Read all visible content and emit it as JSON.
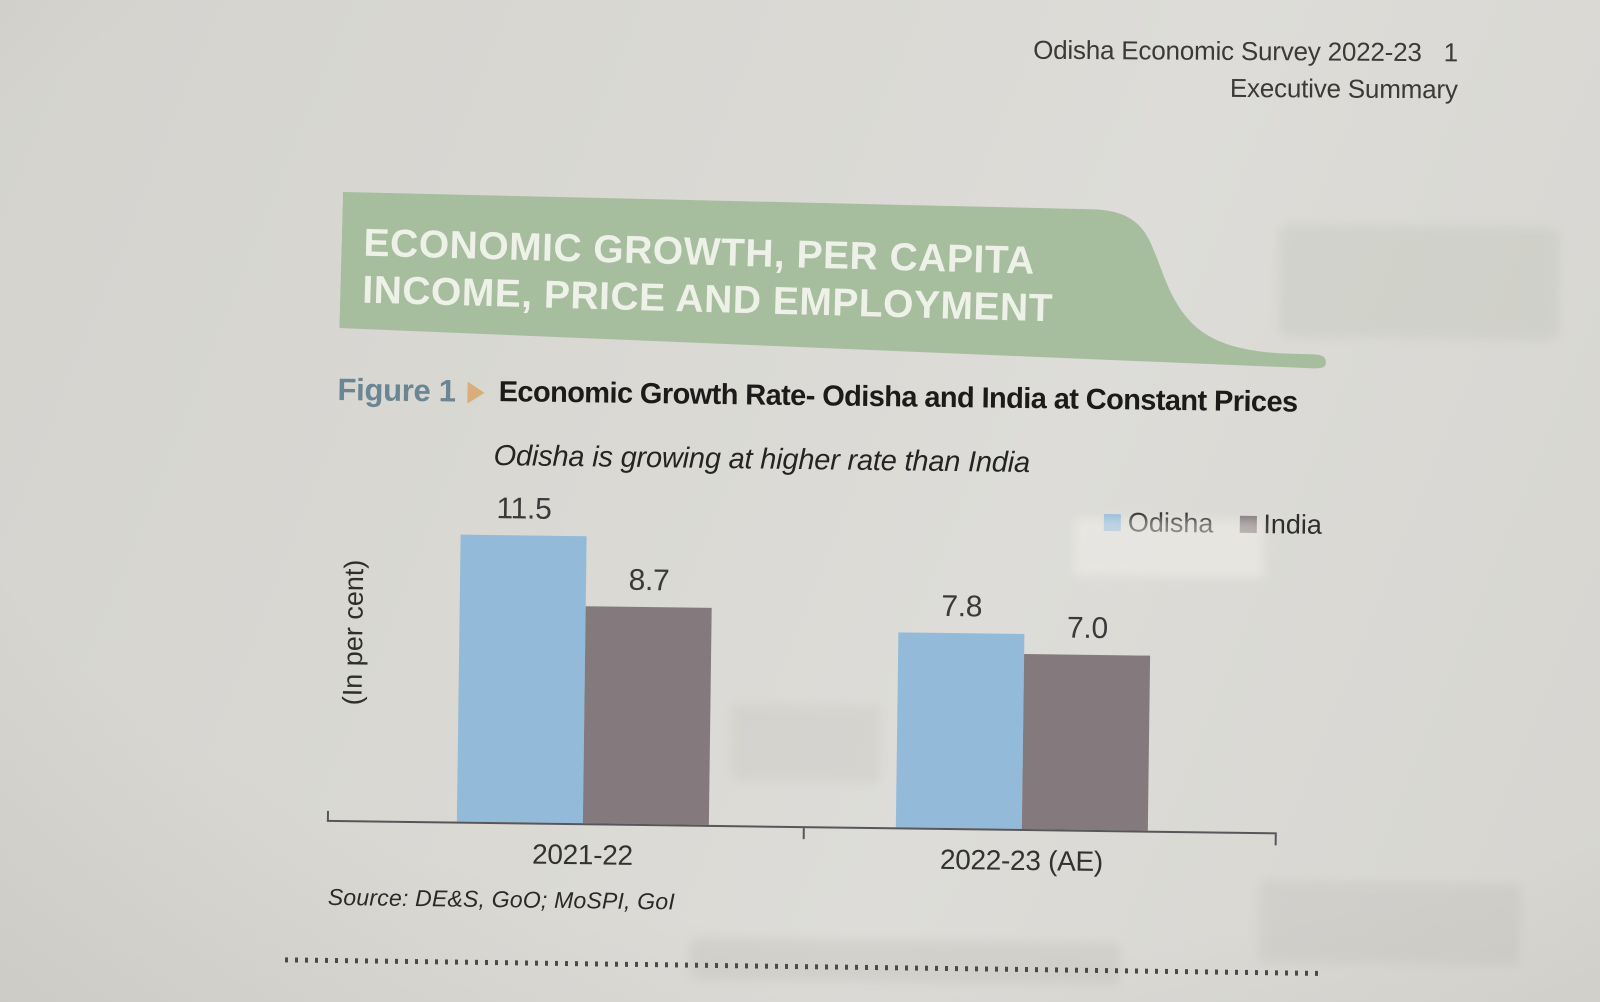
{
  "header": {
    "survey_title": "Odisha Economic Survey 2022-23",
    "page_number": "1",
    "section": "Executive Summary"
  },
  "banner": {
    "line1": "ECONOMIC GROWTH, PER CAPITA",
    "line2": "INCOME, PRICE AND EMPLOYMENT",
    "fill_color": "#a6bd9e",
    "text_color": "#eef1e8"
  },
  "figure": {
    "label": "Figure 1",
    "pointer_icon": "right-triangle-icon",
    "title": "Economic Growth Rate- Odisha and India at Constant Prices",
    "subtitle": "Odisha is growing at higher rate than India",
    "source": "Source: DE&S, GoO; MoSPI, GoI"
  },
  "chart_data": {
    "type": "bar",
    "title": "Economic Growth Rate- Odisha and India at Constant Prices",
    "subtitle": "Odisha is growing at higher rate than India",
    "ylabel": "(In per cent)",
    "xlabel": "",
    "categories": [
      "2021-22",
      "2022-23 (AE)"
    ],
    "series": [
      {
        "name": "Odisha",
        "color": "#94bad9",
        "values": [
          11.5,
          7.8
        ]
      },
      {
        "name": "India",
        "color": "#84797c",
        "values": [
          8.7,
          7.0
        ]
      }
    ],
    "value_label_format": "one-decimal",
    "ylim": [
      0,
      12.5
    ],
    "grid": false,
    "legend_position": "top-right",
    "axis_color": "#57565a"
  }
}
